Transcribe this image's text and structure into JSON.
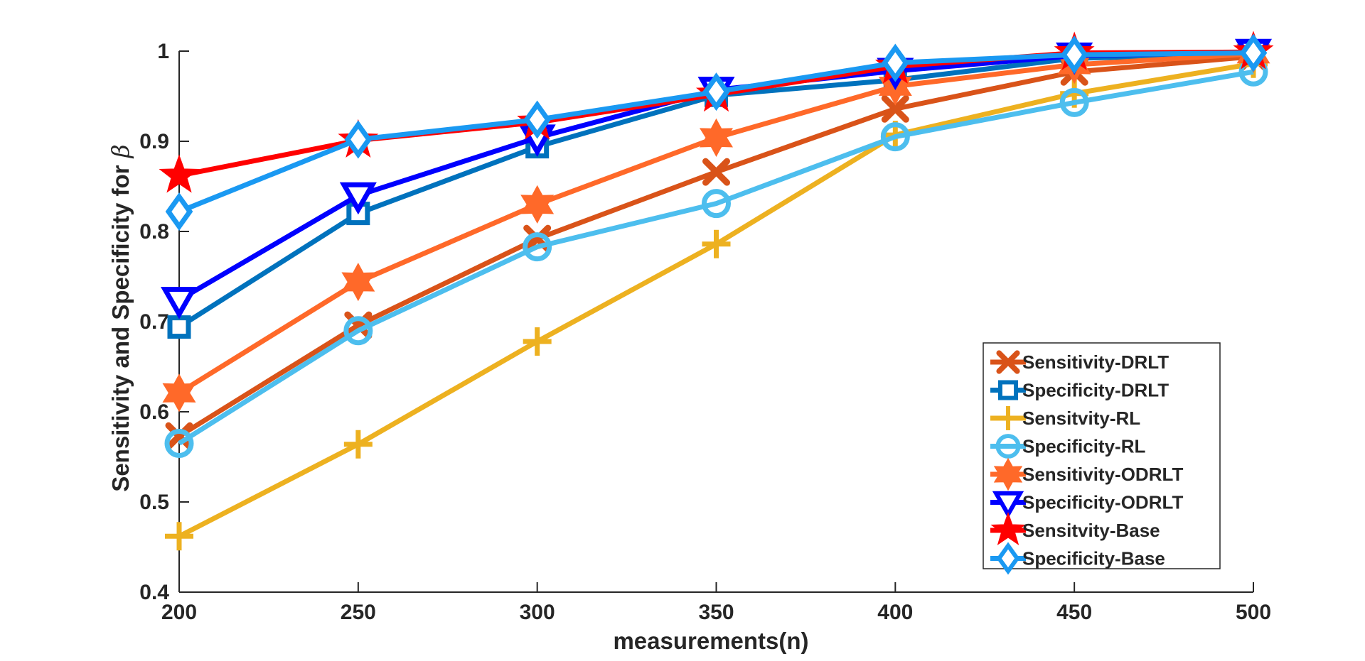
{
  "chart_data": {
    "type": "line",
    "title": "",
    "xlabel": "measurements(n)",
    "ylabel_text": "Sensitivity and Specificity for",
    "ylabel_symbol": "β",
    "x": [
      200,
      250,
      300,
      350,
      400,
      450,
      500
    ],
    "xticks": [
      "200",
      "250",
      "300",
      "350",
      "400",
      "450",
      "500"
    ],
    "yticks": [
      "0.4",
      "0.5",
      "0.6",
      "0.7",
      "0.8",
      "0.9",
      "1"
    ],
    "xlim": [
      200,
      500
    ],
    "ylim": [
      0.4,
      1.0
    ],
    "grid": false,
    "legend_position": "bottom-right",
    "series": [
      {
        "name": "Sensitivity-DRLT",
        "color": "#D95319",
        "marker": "x",
        "values": [
          0.573,
          0.696,
          0.792,
          0.866,
          0.936,
          0.977,
          0.994
        ]
      },
      {
        "name": "Specificity-DRLT",
        "color": "#0072BD",
        "marker": "square",
        "values": [
          0.694,
          0.82,
          0.894,
          0.951,
          0.968,
          0.992,
          0.997
        ]
      },
      {
        "name": "Sensitvity-RL",
        "color": "#EDB120",
        "marker": "plus",
        "values": [
          0.462,
          0.564,
          0.678,
          0.786,
          0.907,
          0.953,
          0.986
        ]
      },
      {
        "name": "Specificity-RL",
        "color": "#4DBEEE",
        "marker": "circle",
        "values": [
          0.565,
          0.69,
          0.783,
          0.831,
          0.905,
          0.943,
          0.977
        ]
      },
      {
        "name": "Sensitivity-ODRLT",
        "color": "#FF6929",
        "marker": "hexagram",
        "values": [
          0.621,
          0.744,
          0.83,
          0.904,
          0.961,
          0.985,
          0.997
        ]
      },
      {
        "name": "Specificity-ODRLT",
        "color": "#0000FF",
        "marker": "triangle-down",
        "values": [
          0.724,
          0.84,
          0.904,
          0.957,
          0.978,
          0.995,
          0.999
        ]
      },
      {
        "name": "Sensitvity-Base",
        "color": "#FF0000",
        "marker": "pentagram",
        "values": [
          0.862,
          0.901,
          0.921,
          0.952,
          0.983,
          0.998,
          0.999
        ]
      },
      {
        "name": "Specificity-Base",
        "color": "#1A99F2",
        "marker": "diamond",
        "values": [
          0.822,
          0.902,
          0.924,
          0.955,
          0.987,
          0.996,
          0.998
        ]
      }
    ]
  }
}
